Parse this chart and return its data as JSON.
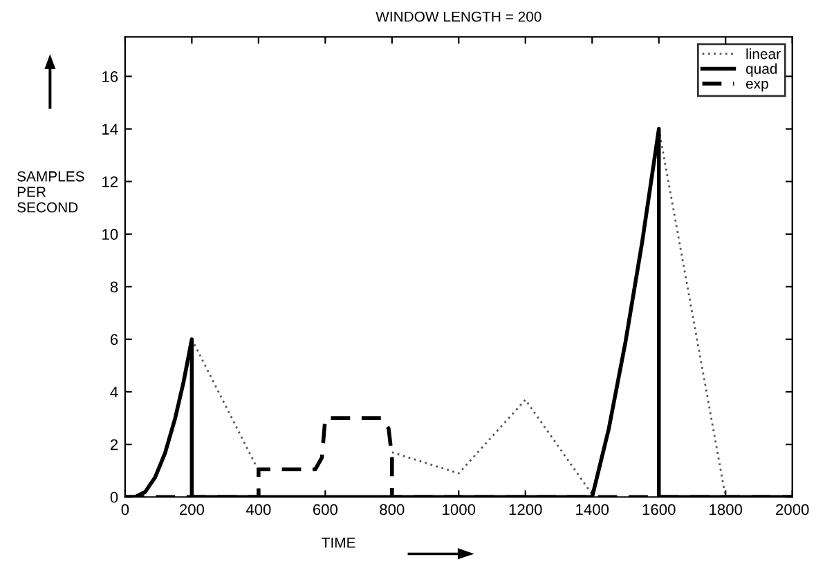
{
  "chart_data": {
    "type": "line",
    "title": "WINDOW LENGTH = 200",
    "xlabel": "TIME",
    "ylabel": "SAMPLES\nPER\nSECOND",
    "xlim": [
      0,
      2000
    ],
    "ylim": [
      0,
      17.5
    ],
    "xticks": [
      0,
      200,
      400,
      600,
      800,
      1000,
      1200,
      1400,
      1600,
      1800,
      2000
    ],
    "yticks": [
      0,
      2,
      4,
      6,
      8,
      10,
      12,
      14,
      16
    ],
    "grid": false,
    "legend": "top right",
    "series": [
      {
        "name": "linear",
        "color": "#555555",
        "line_style": "dotted",
        "x": [
          200,
          400,
          600,
          800,
          1000,
          1200,
          1400,
          1500,
          1600,
          1800
        ],
        "values": [
          6,
          1.0,
          null,
          1.7,
          0.9,
          3.7,
          0.1,
          null,
          14,
          0
        ]
      },
      {
        "name": "quad",
        "color": "#000000",
        "line_style": "solid",
        "x": [
          0,
          30,
          60,
          90,
          120,
          150,
          175,
          200,
          200,
          1400,
          1450,
          1500,
          1550,
          1600,
          1600,
          2000
        ],
        "values": [
          0,
          0,
          0.19,
          0.75,
          1.68,
          2.99,
          4.36,
          6,
          0,
          0,
          2.6,
          5.9,
          9.7,
          14,
          0,
          0
        ]
      },
      {
        "name": "exp",
        "color": "#000000",
        "line_style": "dashed",
        "x": [
          0,
          400,
          400,
          570,
          590,
          600,
          770,
          790,
          800,
          800,
          2000
        ],
        "values": [
          0,
          0,
          1.05,
          1.05,
          1.5,
          3,
          3,
          2.6,
          1.5,
          0,
          0
        ]
      }
    ]
  }
}
